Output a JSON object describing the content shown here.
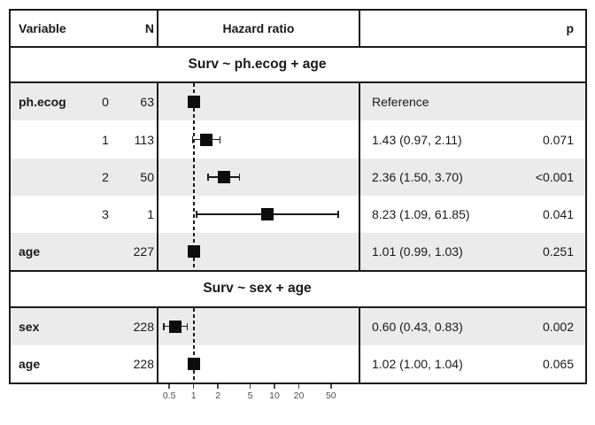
{
  "table": {
    "header": {
      "variable": "Variable",
      "n": "N",
      "hazard_ratio": "Hazard ratio",
      "p": "p"
    }
  },
  "chart_data": {
    "type": "forest",
    "x_scale": "log10",
    "x_ticks": [
      0.5,
      1,
      2,
      5,
      10,
      20,
      50
    ],
    "reference_line": 1.0,
    "xlim": [
      0.4,
      70
    ],
    "sections": [
      {
        "title": "Surv ~ ph.ecog + age",
        "rows": [
          {
            "variable": "ph.ecog",
            "level": "0",
            "n": "63",
            "hr": 1.0,
            "ci_low": null,
            "ci_high": null,
            "estimate_label": "Reference",
            "p": ""
          },
          {
            "variable": "",
            "level": "1",
            "n": "113",
            "hr": 1.43,
            "ci_low": 0.97,
            "ci_high": 2.11,
            "estimate_label": "1.43 (0.97, 2.11)",
            "p": "0.071"
          },
          {
            "variable": "",
            "level": "2",
            "n": "50",
            "hr": 2.36,
            "ci_low": 1.5,
            "ci_high": 3.7,
            "estimate_label": "2.36 (1.50, 3.70)",
            "p": "<0.001"
          },
          {
            "variable": "",
            "level": "3",
            "n": "1",
            "hr": 8.23,
            "ci_low": 1.09,
            "ci_high": 61.85,
            "estimate_label": "8.23 (1.09, 61.85)",
            "p": "0.041"
          },
          {
            "variable": "age",
            "level": "",
            "n": "227",
            "hr": 1.01,
            "ci_low": 0.99,
            "ci_high": 1.03,
            "estimate_label": "1.01 (0.99, 1.03)",
            "p": "0.251"
          }
        ]
      },
      {
        "title": "Surv ~ sex + age",
        "rows": [
          {
            "variable": "sex",
            "level": "",
            "n": "228",
            "hr": 0.6,
            "ci_low": 0.43,
            "ci_high": 0.83,
            "estimate_label": "0.60 (0.43, 0.83)",
            "p": "0.002"
          },
          {
            "variable": "age",
            "level": "",
            "n": "228",
            "hr": 1.02,
            "ci_low": 1.0,
            "ci_high": 1.04,
            "estimate_label": "1.02 (1.00, 1.04)",
            "p": "0.065"
          }
        ]
      }
    ]
  },
  "colors": {
    "shaded_row": "#ebebeb",
    "border": "#1a1a1a",
    "marker": "#0d0d0d",
    "axis_text": "#4d4d4d"
  }
}
